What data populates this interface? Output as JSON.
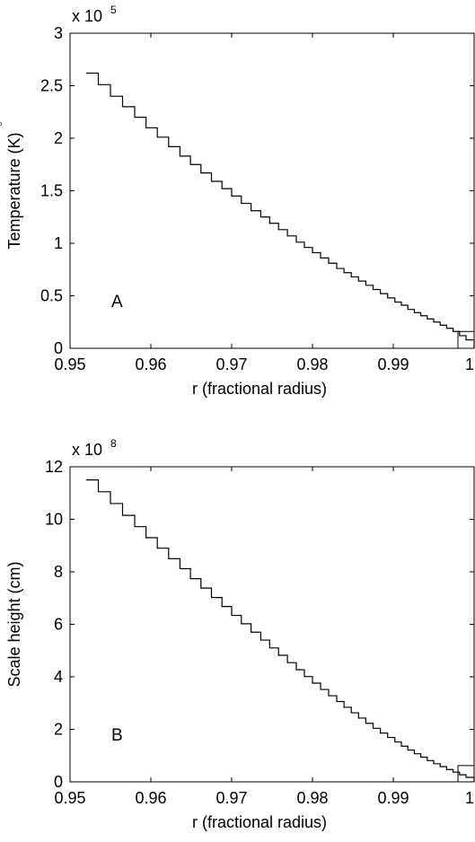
{
  "chart_data": [
    {
      "type": "line",
      "panel_label": "A",
      "xlabel": "r (fractional radius)",
      "ylabel": "Temperature (K)",
      "ylabel_degree_mark": "°",
      "multiplier_text": "x 10",
      "multiplier_exponent": "5",
      "xlim": [
        0.95,
        1.0
      ],
      "ylim": [
        0,
        3
      ],
      "xticks": [
        0.95,
        0.96,
        0.97,
        0.98,
        0.99,
        1.0
      ],
      "xtick_labels": [
        "0.95",
        "0.96",
        "0.97",
        "0.98",
        "0.99",
        "1"
      ],
      "yticks": [
        0,
        0.5,
        1,
        1.5,
        2,
        2.5,
        3
      ],
      "ytick_labels": [
        "0",
        "0.5",
        "1",
        "1.5",
        "2",
        "2.5",
        "3"
      ],
      "step_series": {
        "x": [
          0.952,
          0.9535,
          0.955,
          0.9565,
          0.958,
          0.9594,
          0.9608,
          0.9622,
          0.9636,
          0.9649,
          0.9662,
          0.9675,
          0.9688,
          0.97,
          0.9712,
          0.9724,
          0.9736,
          0.9747,
          0.9758,
          0.9769,
          0.978,
          0.979,
          0.98,
          0.981,
          0.982,
          0.983,
          0.9839,
          0.9848,
          0.9857,
          0.9866,
          0.9875,
          0.9884,
          0.9893,
          0.9902,
          0.991,
          0.9918,
          0.9926,
          0.9934,
          0.9942,
          0.995,
          0.9958,
          0.9966,
          0.9974,
          0.9982,
          0.999,
          1.0
        ],
        "y": [
          2.62,
          2.51,
          2.4,
          2.3,
          2.2,
          2.1,
          2.01,
          1.92,
          1.83,
          1.75,
          1.67,
          1.59,
          1.52,
          1.45,
          1.38,
          1.31,
          1.25,
          1.19,
          1.13,
          1.07,
          1.01,
          0.96,
          0.91,
          0.86,
          0.81,
          0.76,
          0.72,
          0.68,
          0.64,
          0.6,
          0.56,
          0.52,
          0.48,
          0.44,
          0.41,
          0.37,
          0.34,
          0.31,
          0.28,
          0.25,
          0.22,
          0.19,
          0.16,
          0.12,
          0.08,
          0.0
        ]
      },
      "inset_box": {
        "x": [
          0.998,
          1.0
        ],
        "y": [
          0,
          0.16
        ]
      }
    },
    {
      "type": "line",
      "panel_label": "B",
      "xlabel": "r (fractional radius)",
      "ylabel": "Scale height (cm)",
      "multiplier_text": "x 10",
      "multiplier_exponent": "8",
      "xlim": [
        0.95,
        1.0
      ],
      "ylim": [
        0,
        12
      ],
      "xticks": [
        0.95,
        0.96,
        0.97,
        0.98,
        0.99,
        1.0
      ],
      "xtick_labels": [
        "0.95",
        "0.96",
        "0.97",
        "0.98",
        "0.99",
        "1"
      ],
      "yticks": [
        0,
        2,
        4,
        6,
        8,
        10,
        12
      ],
      "ytick_labels": [
        "0",
        "2",
        "4",
        "6",
        "8",
        "10",
        "12"
      ],
      "step_series": {
        "x": [
          0.952,
          0.9535,
          0.955,
          0.9565,
          0.958,
          0.9594,
          0.9608,
          0.9622,
          0.9636,
          0.9649,
          0.9662,
          0.9675,
          0.9688,
          0.97,
          0.9712,
          0.9724,
          0.9736,
          0.9747,
          0.9758,
          0.9769,
          0.978,
          0.979,
          0.98,
          0.981,
          0.982,
          0.983,
          0.9839,
          0.9848,
          0.9857,
          0.9866,
          0.9875,
          0.9884,
          0.9893,
          0.9902,
          0.991,
          0.9918,
          0.9926,
          0.9934,
          0.9942,
          0.995,
          0.9958,
          0.9966,
          0.9974,
          0.9982,
          0.999,
          1.0
        ],
        "y": [
          11.5,
          11.05,
          10.6,
          10.15,
          9.72,
          9.3,
          8.9,
          8.5,
          8.12,
          7.74,
          7.38,
          7.02,
          6.68,
          6.34,
          6.02,
          5.7,
          5.4,
          5.1,
          4.82,
          4.54,
          4.27,
          4.01,
          3.76,
          3.52,
          3.28,
          3.06,
          2.84,
          2.63,
          2.43,
          2.23,
          2.04,
          1.86,
          1.69,
          1.52,
          1.36,
          1.21,
          1.07,
          0.94,
          0.81,
          0.69,
          0.58,
          0.47,
          0.37,
          0.27,
          0.17,
          0.0
        ]
      },
      "inset_box": {
        "x": [
          0.998,
          1.0
        ],
        "y": [
          0,
          0.62
        ]
      }
    }
  ]
}
